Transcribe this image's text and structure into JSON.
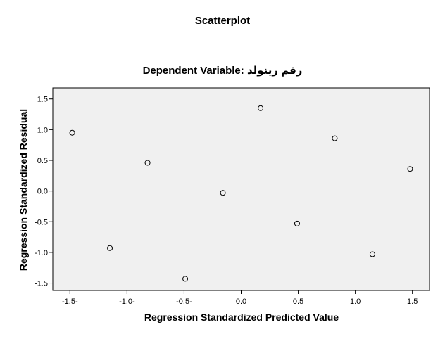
{
  "chart_data": {
    "type": "scatter",
    "title": "Scatterplot",
    "subtitle": "Dependent Variable: رقم رينولد",
    "xlabel": "Regression Standardized Predicted Value",
    "ylabel": "Regression Standardized Residual",
    "xlim": [
      -1.65,
      1.65
    ],
    "ylim": [
      -1.62,
      1.68
    ],
    "x_ticks": [
      -1.5,
      -1.0,
      -0.5,
      0.0,
      0.5,
      1.0,
      1.5
    ],
    "x_tick_labels": [
      "-1.5-",
      "-1.0-",
      "-0.5-",
      "0.0",
      "0.5",
      "1.0",
      "1.5"
    ],
    "y_ticks": [
      1.5,
      1.0,
      0.5,
      0.0,
      -0.5,
      -1.0,
      -1.5
    ],
    "y_tick_labels": [
      "1.5",
      "1.0",
      "0.5",
      "0.0",
      "-0.5",
      "-1.0",
      "-1.5"
    ],
    "grid": false,
    "plot_background": "#f0f0f0",
    "marker": "open-circle",
    "points": [
      {
        "x": -1.48,
        "y": 0.95
      },
      {
        "x": -1.15,
        "y": -0.93
      },
      {
        "x": -0.82,
        "y": 0.46
      },
      {
        "x": -0.49,
        "y": -1.43
      },
      {
        "x": -0.16,
        "y": -0.03
      },
      {
        "x": 0.17,
        "y": 1.35
      },
      {
        "x": 0.49,
        "y": -0.53
      },
      {
        "x": 0.82,
        "y": 0.86
      },
      {
        "x": 1.15,
        "y": -1.03
      },
      {
        "x": 1.48,
        "y": 0.36
      }
    ]
  }
}
